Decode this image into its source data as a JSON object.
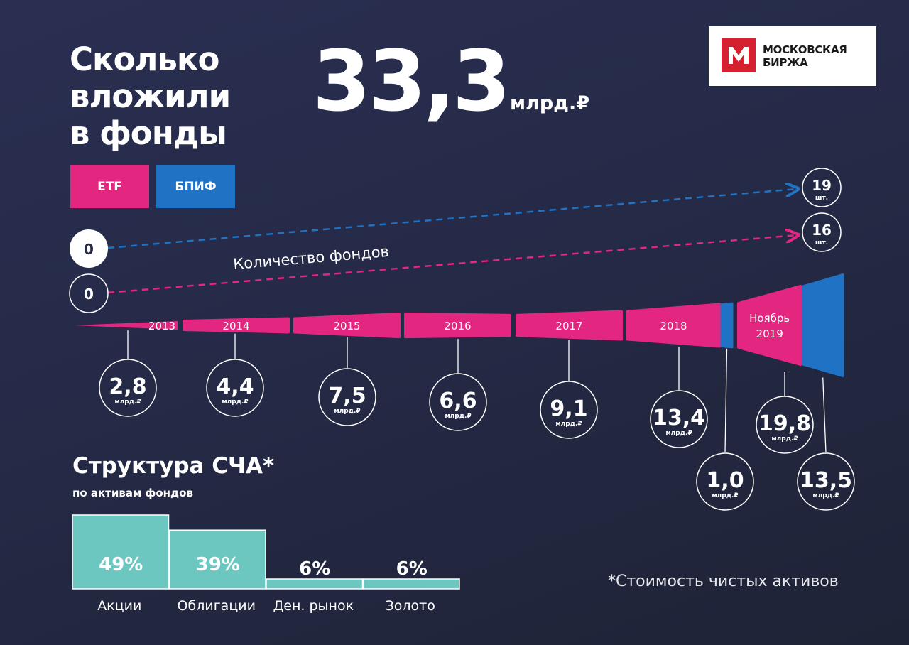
{
  "header": {
    "title_lines": [
      "Сколько",
      "вложили",
      "в фонды"
    ],
    "total_value": "33,3",
    "total_unit": "млрд.₽"
  },
  "logo": {
    "line1": "МОСКОВСКАЯ",
    "line2": "БИРЖА"
  },
  "legend": {
    "etf": "ETF",
    "bpif": "БПИФ"
  },
  "colors": {
    "etf": "#e3267f",
    "bpif": "#1f72c4",
    "structure": "#6cc7c0"
  },
  "fund_count": {
    "label": "Количество фондов",
    "etf": {
      "start": "0",
      "end": "16",
      "unit": "шт."
    },
    "bpif": {
      "start": "0",
      "end": "19",
      "unit": "шт."
    }
  },
  "chart_data": [
    {
      "type": "bar",
      "title": "",
      "categories": [
        "2013",
        "2014",
        "2015",
        "2016",
        "2017",
        "2018",
        "Ноябрь 2019"
      ],
      "category_lines": [
        [
          "2013"
        ],
        [
          "2014"
        ],
        [
          "2015"
        ],
        [
          "2016"
        ],
        [
          "2017"
        ],
        [
          "2018"
        ],
        [
          "Ноябрь",
          "2019"
        ]
      ],
      "unit": "млрд.₽",
      "series": [
        {
          "name": "ETF",
          "values": [
            2.8,
            4.4,
            7.5,
            6.6,
            9.1,
            13.4,
            19.8
          ],
          "labels": [
            "2,8",
            "4,4",
            "7,5",
            "6,6",
            "9,1",
            "13,4",
            "19,8"
          ]
        },
        {
          "name": "БПИФ",
          "values": [
            null,
            null,
            null,
            null,
            null,
            1.0,
            13.5
          ],
          "labels": [
            "",
            "",
            "",
            "",
            "",
            "1,0",
            "13,5"
          ]
        }
      ]
    },
    {
      "type": "bar",
      "title": "Структура СЧА*",
      "subtitle": "по активам фондов",
      "categories": [
        "Акции",
        "Облигации",
        "Ден. рынок",
        "Золото"
      ],
      "values": [
        49,
        39,
        6,
        6
      ],
      "labels": [
        "49%",
        "39%",
        "6%",
        "6%"
      ]
    }
  ],
  "footnote": "*Стоимость чистых активов"
}
